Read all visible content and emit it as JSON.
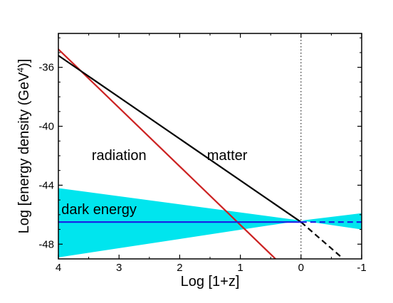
{
  "chart_data": {
    "type": "line",
    "xlabel": "Log [1+z]",
    "ylabel": "Log [energy density (GeV",
    "ylabel_sup": "4",
    "ylabel_close": ")]",
    "xlim": [
      4,
      -1
    ],
    "ylim": [
      -49,
      -33.7
    ],
    "x_ticks": [
      4,
      3,
      2,
      1,
      0,
      -1
    ],
    "x_tick_labels": [
      "4",
      "3",
      "2",
      "1",
      "0",
      "-1"
    ],
    "y_ticks": [
      -36,
      -40,
      -44,
      -48
    ],
    "y_tick_labels": [
      "-36",
      "-40",
      "-44",
      "-48"
    ],
    "reference_line": {
      "x": 0,
      "style": "dotted"
    },
    "band": {
      "color": "#00e5ee",
      "upper": [
        [
          4,
          -44.2
        ],
        [
          0,
          -46.4
        ],
        [
          -1,
          -45.9
        ]
      ],
      "lower": [
        [
          4,
          -48.9
        ],
        [
          0,
          -46.4
        ],
        [
          -1,
          -47.0
        ]
      ]
    },
    "series": [
      {
        "name": "radiation",
        "color": "#cc2222",
        "points": [
          [
            4.27,
            -33.7
          ],
          [
            0.42,
            -49.0
          ]
        ]
      },
      {
        "name": "matter",
        "color": "#000000",
        "points": [
          [
            4.0,
            -35.2
          ],
          [
            0.0,
            -46.5
          ]
        ],
        "dashed_extension": [
          [
            0.0,
            -46.5
          ],
          [
            -0.67,
            -48.9
          ]
        ]
      },
      {
        "name": "dark energy",
        "color": "#1a1ae6",
        "points": [
          [
            4.0,
            -46.5
          ],
          [
            0.0,
            -46.5
          ]
        ],
        "dashed_extension": [
          [
            0.0,
            -46.5
          ],
          [
            -1.0,
            -46.5
          ]
        ]
      }
    ],
    "annotations": [
      {
        "text": "radiation",
        "x": 3.45,
        "y": -42.3
      },
      {
        "text": "matter",
        "x": 1.55,
        "y": -42.3
      },
      {
        "text": "dark energy",
        "x": 3.95,
        "y": -45.95
      }
    ]
  }
}
